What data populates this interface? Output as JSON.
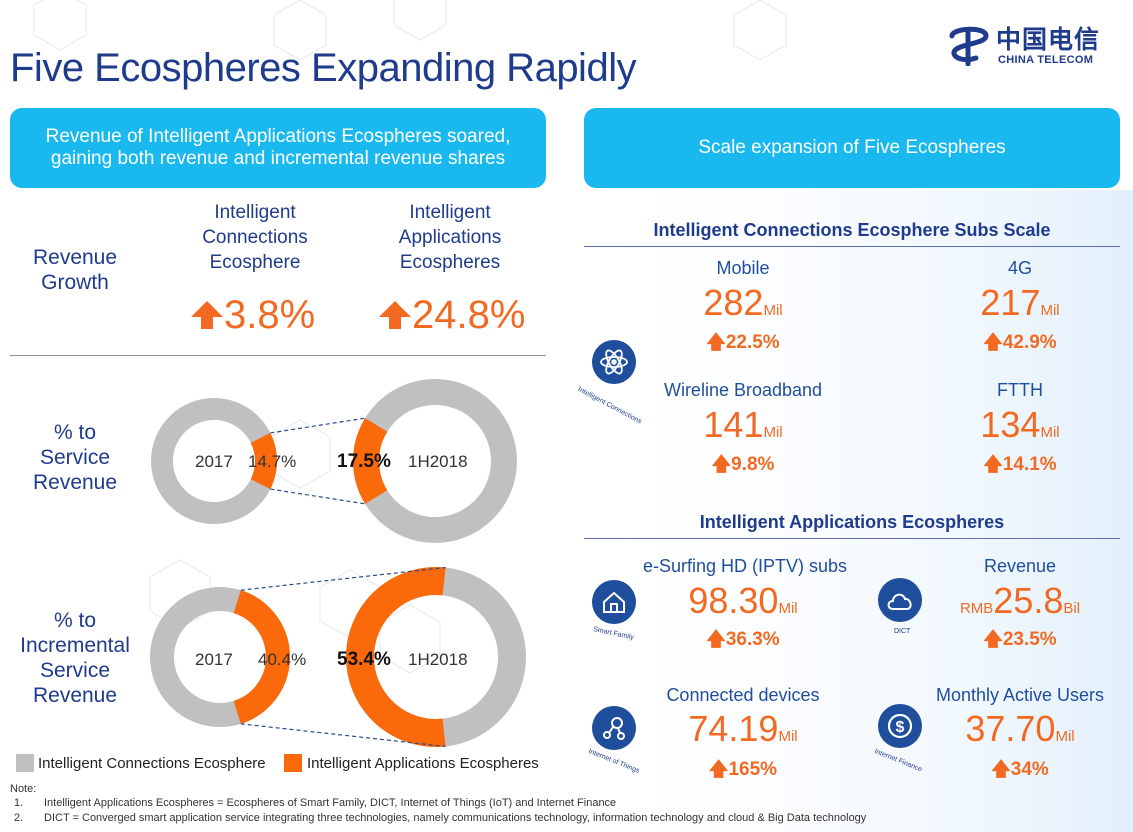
{
  "title": "Five Ecospheres Expanding Rapidly",
  "logo": {
    "cn": "中国电信",
    "en": "CHINA TELECOM"
  },
  "left_banner": "Revenue of Intelligent Applications Ecospheres soared, gaining both revenue and incremental revenue shares",
  "right_banner": "Scale expansion of Five Ecospheres",
  "revenue_growth": {
    "row_label_1": "Revenue",
    "row_label_2": "Growth",
    "col1_l1": "Intelligent",
    "col1_l2": "Connections",
    "col1_l3": "Ecosphere",
    "col2_l1": "Intelligent",
    "col2_l2": "Applications",
    "col2_l3": "Ecospheres",
    "col1_value": "3.8%",
    "col2_value": "24.8%"
  },
  "service_revenue": {
    "label_1": "% to",
    "label_2": "Service",
    "label_3": "Revenue",
    "year_a": "2017",
    "pct_a": "14.7%",
    "pct_b": "17.5%",
    "year_b": "1H2018"
  },
  "incremental_revenue": {
    "label_1": "% to",
    "label_2": "Incremental",
    "label_3": "Service",
    "label_4": "Revenue",
    "year_a": "2017",
    "pct_a": "40.4%",
    "pct_b": "53.4%",
    "year_b": "1H2018"
  },
  "chart_data": [
    {
      "type": "pie",
      "title": "% to Service Revenue 2017",
      "categories": [
        "Intelligent Connections Ecosphere",
        "Intelligent Applications Ecospheres"
      ],
      "values": [
        85.3,
        14.7
      ]
    },
    {
      "type": "pie",
      "title": "% to Service Revenue 1H2018",
      "categories": [
        "Intelligent Connections Ecosphere",
        "Intelligent Applications Ecospheres"
      ],
      "values": [
        82.5,
        17.5
      ]
    },
    {
      "type": "pie",
      "title": "% to Incremental Service Revenue 2017",
      "categories": [
        "Intelligent Connections Ecosphere",
        "Intelligent Applications Ecospheres"
      ],
      "values": [
        59.6,
        40.4
      ]
    },
    {
      "type": "pie",
      "title": "% to Incremental Service Revenue 1H2018",
      "categories": [
        "Intelligent Connections Ecosphere",
        "Intelligent Applications Ecospheres"
      ],
      "values": [
        46.6,
        53.4
      ]
    }
  ],
  "colors": {
    "grey": "#c0c0c0",
    "orange": "#fa6a0a",
    "blue": "#1f3b8c",
    "cyan": "#19b9f0"
  },
  "legend": {
    "grey_label": "Intelligent Connections Ecosphere",
    "orange_label": "Intelligent Applications Ecospheres"
  },
  "notes": {
    "heading": "Note:",
    "n1_num": "1.",
    "n1": "Intelligent Applications Ecospheres = Ecospheres of Smart Family, DICT, Internet of Things (IoT) and Internet Finance",
    "n2_num": "2.",
    "n2": "DICT = Converged smart application service integrating three technologies, namely communications technology, information technology and cloud & Big Data technology"
  },
  "connections": {
    "heading": "Intelligent Connections Ecosphere Subs Scale",
    "icon_caption": "Intelligent Connections",
    "mobile": {
      "label": "Mobile",
      "value": "282",
      "unit": "Mil",
      "growth": "22.5%"
    },
    "g4": {
      "label": "4G",
      "value": "217",
      "unit": "Mil",
      "growth": "42.9%"
    },
    "wireline": {
      "label": "Wireline Broadband",
      "value": "141",
      "unit": "Mil",
      "growth": "9.8%"
    },
    "ftth": {
      "label": "FTTH",
      "value": "134",
      "unit": "Mil",
      "growth": "14.1%"
    }
  },
  "applications": {
    "heading": "Intelligent Applications Ecospheres",
    "iptv": {
      "label": "e-Surfing HD (IPTV) subs",
      "value": "98.30",
      "unit": "Mil",
      "growth": "36.3%",
      "icon_caption": "Smart Family"
    },
    "revenue": {
      "label": "Revenue",
      "prefix": "RMB",
      "value": "25.8",
      "unit": "Bil",
      "growth": "23.5%",
      "icon_caption": "DICT"
    },
    "devices": {
      "label": "Connected devices",
      "value": "74.19",
      "unit": "Mil",
      "growth": "165%",
      "icon_caption": "Internet of Things"
    },
    "mau": {
      "label": "Monthly Active Users",
      "value": "37.70",
      "unit": "Mil",
      "growth": "34%",
      "icon_caption": "Internet Finance"
    }
  }
}
